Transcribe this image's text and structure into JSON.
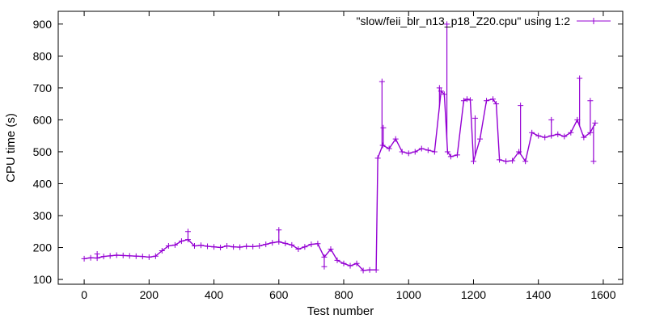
{
  "chart_data": {
    "type": "line",
    "title": "",
    "xlabel": "Test number",
    "ylabel": "CPU time (s)",
    "xlim": [
      -80,
      1660
    ],
    "ylim": [
      85,
      940
    ],
    "x_ticks": [
      0,
      200,
      400,
      600,
      800,
      1000,
      1200,
      1400,
      1600
    ],
    "y_ticks": [
      100,
      200,
      300,
      400,
      500,
      600,
      700,
      800,
      900
    ],
    "grid": false,
    "legend_position": "top-right",
    "series_color": "#9400d3",
    "series": [
      {
        "name": "\"slow/feii_blr_n13_p18_Z20.cpu\" using 1:2",
        "segments": [
          {
            "x": [
              0,
              20,
              40,
              60,
              80,
              100,
              120,
              140,
              160,
              180,
              200,
              220,
              240,
              260,
              280,
              300,
              320,
              340,
              360,
              380,
              400,
              420,
              440,
              460,
              480,
              500,
              520,
              540,
              560,
              580,
              600,
              620,
              640,
              660,
              680,
              700,
              720,
              740,
              760,
              780,
              800,
              820,
              840,
              860,
              880,
              900
            ],
            "y": [
              165,
              168,
              167,
              172,
              174,
              176,
              175,
              174,
              173,
              172,
              170,
              173,
              190,
              205,
              208,
              220,
              225,
              205,
              207,
              204,
              202,
              200,
              205,
              202,
              201,
              204,
              203,
              205,
              210,
              215,
              218,
              213,
              208,
              195,
              202,
              210,
              212,
              170,
              195,
              160,
              150,
              143,
              150,
              128,
              130,
              130
            ]
          },
          {
            "x": [
              905,
              920,
              940,
              960,
              980,
              1000,
              1020,
              1040,
              1060,
              1080,
              1100,
              1110,
              1120,
              1130,
              1150,
              1170,
              1180,
              1190,
              1200,
              1220,
              1240,
              1260,
              1270,
              1280,
              1300,
              1320,
              1340,
              1360,
              1380,
              1400,
              1420,
              1440,
              1460,
              1480,
              1500,
              1520,
              1540,
              1560,
              1575
            ],
            "y": [
              480,
              520,
              510,
              540,
              500,
              495,
              500,
              510,
              505,
              500,
              690,
              680,
              500,
              485,
              490,
              660,
              665,
              662,
              470,
              540,
              660,
              665,
              650,
              475,
              470,
              472,
              500,
              470,
              560,
              550,
              545,
              550,
              555,
              548,
              560,
              600,
              545,
              560,
              590
            ]
          }
        ],
        "spikes": [
          {
            "x": 918,
            "y": 720
          },
          {
            "x": 922,
            "y": 575
          },
          {
            "x": 1095,
            "y": 700
          },
          {
            "x": 1118,
            "y": 900
          },
          {
            "x": 1205,
            "y": 605
          },
          {
            "x": 1345,
            "y": 645
          },
          {
            "x": 1440,
            "y": 600
          },
          {
            "x": 1527,
            "y": 730
          },
          {
            "x": 1560,
            "y": 660
          },
          {
            "x": 600,
            "y": 255
          },
          {
            "x": 320,
            "y": 250
          },
          {
            "x": 40,
            "y": 180
          },
          {
            "x": 740,
            "y": 140
          },
          {
            "x": 1570,
            "y": 470
          }
        ]
      }
    ]
  }
}
